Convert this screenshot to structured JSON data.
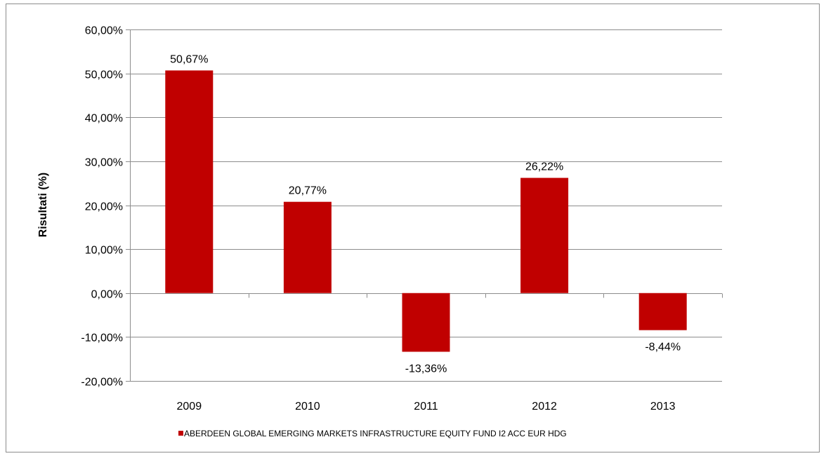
{
  "chart_data": {
    "type": "bar",
    "categories": [
      "2009",
      "2010",
      "2011",
      "2012",
      "2013"
    ],
    "series": [
      {
        "name": "ABERDEEN GLOBAL EMERGING MARKETS INFRASTRUCTURE EQUITY FUND I2 ACC EUR HDG",
        "values": [
          50.67,
          20.77,
          -13.36,
          26.22,
          -8.44
        ],
        "color": "#c00000"
      }
    ],
    "data_labels": [
      "50,67%",
      "20,77%",
      "-13,36%",
      "26,22%",
      "-8,44%"
    ],
    "ylabel": "Risultati (%)",
    "ylim": [
      -20,
      60
    ],
    "y_ticks": [
      60,
      50,
      40,
      30,
      20,
      10,
      0,
      -10,
      -20
    ],
    "y_tick_labels": [
      "60,00%",
      "50,00%",
      "40,00%",
      "30,00%",
      "20,00%",
      "10,00%",
      "0,00%",
      "-10,00%",
      "-20,00%"
    ],
    "grid": true,
    "legend_position": "bottom"
  }
}
